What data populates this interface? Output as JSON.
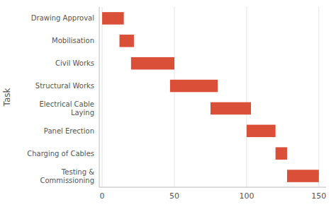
{
  "chart_data": {
    "type": "gantt",
    "orientation": "horizontal",
    "categories": [
      "Drawing Approval",
      "Mobilisation",
      "Civil Works",
      "Structural Works",
      "Electrical Cable\nLaying",
      "Panel Erection",
      "Charging of Cables",
      "Testing &\nCommissioning"
    ],
    "starts": [
      0,
      12,
      20,
      47,
      75,
      100,
      120,
      128
    ],
    "values": [
      15,
      10,
      30,
      33,
      28,
      20,
      8,
      22
    ],
    "color": "#d94f38",
    "xlim": [
      -2,
      155
    ],
    "xticks": [
      0,
      50,
      100,
      150
    ],
    "ylabel": "Task",
    "grid": "x"
  }
}
